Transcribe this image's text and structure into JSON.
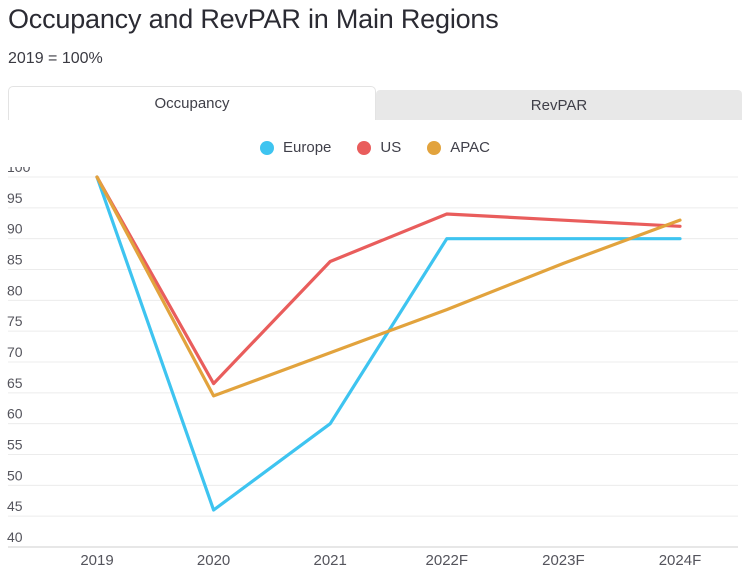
{
  "tabs": [
    {
      "label": "Occupancy",
      "active": true
    },
    {
      "label": "RevPAR",
      "active": false
    }
  ],
  "chart_data": {
    "type": "line",
    "title": "Occupancy and RevPAR in Main Regions",
    "subtitle": "2019 = 100%",
    "xlabel": "",
    "ylabel": "",
    "x_categories": [
      "2019",
      "2020",
      "2021",
      "2022F",
      "2023F",
      "2024F"
    ],
    "series": [
      {
        "name": "Europe",
        "color": "#3EC4F0",
        "values": [
          100,
          46,
          60,
          90,
          90,
          90
        ]
      },
      {
        "name": "US",
        "color": "#E95D5C",
        "values": [
          100,
          66.5,
          86.3,
          94,
          93,
          92
        ]
      },
      {
        "name": "APAC",
        "color": "#E2A33D",
        "values": [
          100,
          64.5,
          71.5,
          78.5,
          86,
          93
        ]
      }
    ],
    "ylim": [
      40,
      100
    ],
    "ytick_step": 5,
    "grid": true,
    "legend_position": "top-center",
    "styles": {
      "grid_color": "#ececec",
      "axis_line_color": "#cfcfcf",
      "tick_text_color": "#54545c"
    }
  }
}
